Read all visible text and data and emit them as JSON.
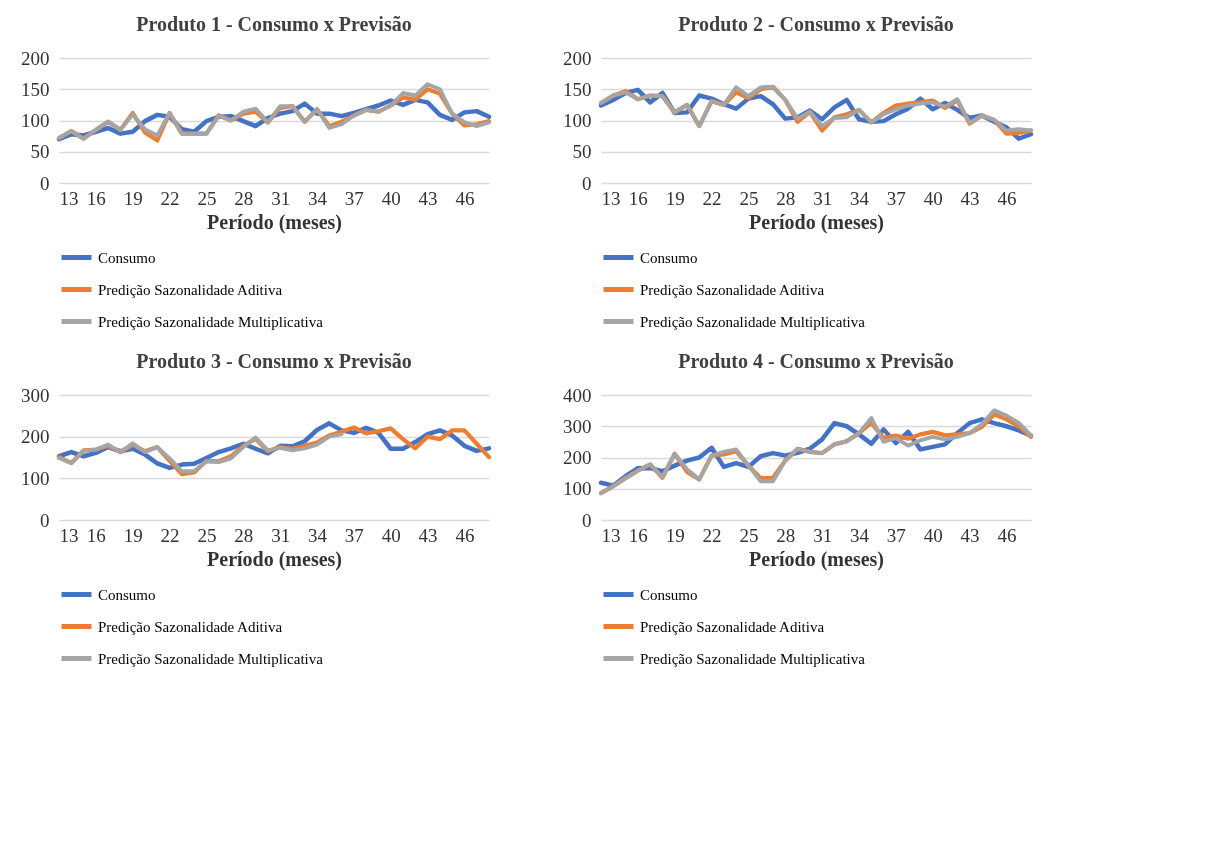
{
  "chart_data": [
    {
      "type": "line",
      "title": "Produto 1 - Consumo x Previsão",
      "xlabel": "Período (meses)",
      "x": [
        13,
        14,
        15,
        16,
        17,
        18,
        19,
        20,
        21,
        22,
        23,
        24,
        25,
        26,
        27,
        28,
        29,
        30,
        31,
        32,
        33,
        34,
        35,
        36,
        37,
        38,
        39,
        40,
        41,
        42,
        43,
        44,
        45,
        46,
        47,
        48
      ],
      "xlim": [
        13,
        48
      ],
      "xticks": [
        13,
        16,
        19,
        22,
        25,
        28,
        31,
        34,
        37,
        40,
        43,
        46
      ],
      "ylim": [
        0,
        200
      ],
      "yticks": [
        0,
        50,
        100,
        150,
        200
      ],
      "grid": "y",
      "legend": "bottom",
      "series": [
        {
          "name": "Consumo",
          "color": "#4472c4",
          "values": [
            70,
            78,
            76,
            82,
            88,
            79,
            82,
            99,
            109,
            106,
            86,
            82,
            99,
            106,
            107,
            99,
            91,
            104,
            111,
            115,
            127,
            111,
            111,
            107,
            112,
            118,
            124,
            132,
            125,
            133,
            129,
            109,
            101,
            113,
            115,
            106
          ]
        },
        {
          "name": "Predição Sazonalidade Aditiva",
          "color": "#ed7d31",
          "values": [
            72,
            83,
            71,
            85,
            98,
            85,
            112,
            81,
            68,
            112,
            79,
            79,
            79,
            108,
            100,
            111,
            114,
            97,
            120,
            123,
            98,
            118,
            91,
            98,
            108,
            117,
            114,
            124,
            137,
            133,
            150,
            143,
            111,
            92,
            94,
            99
          ]
        },
        {
          "name": "Predição Sazonalidade Multiplicativa",
          "color": "#a5a5a5",
          "values": [
            72,
            83,
            71,
            85,
            98,
            85,
            110,
            86,
            76,
            112,
            79,
            79,
            79,
            108,
            100,
            114,
            119,
            97,
            123,
            123,
            98,
            118,
            88,
            94,
            108,
            117,
            114,
            124,
            144,
            140,
            158,
            150,
            111,
            97,
            91,
            97
          ]
        }
      ]
    },
    {
      "type": "line",
      "title": "Produto 2 - Consumo x Previsão",
      "xlabel": "Período (meses)",
      "x": [
        13,
        14,
        15,
        16,
        17,
        18,
        19,
        20,
        21,
        22,
        23,
        24,
        25,
        26,
        27,
        28,
        29,
        30,
        31,
        32,
        33,
        34,
        35,
        36,
        37,
        38,
        39,
        40,
        41,
        42,
        43,
        44,
        45,
        46,
        47,
        48
      ],
      "xlim": [
        13,
        48
      ],
      "xticks": [
        13,
        16,
        19,
        22,
        25,
        28,
        31,
        34,
        37,
        40,
        43,
        46
      ],
      "ylim": [
        0,
        200
      ],
      "yticks": [
        0,
        50,
        100,
        150,
        200
      ],
      "grid": "y",
      "legend": "bottom",
      "series": [
        {
          "name": "Consumo",
          "color": "#4472c4",
          "values": [
            124,
            133,
            144,
            149,
            129,
            144,
            112,
            113,
            140,
            135,
            126,
            119,
            135,
            139,
            126,
            103,
            105,
            116,
            102,
            121,
            133,
            102,
            98,
            99,
            110,
            119,
            135,
            118,
            128,
            117,
            104,
            108,
            98,
            89,
            71,
            78
          ]
        },
        {
          "name": "Predição Sazonalidade Aditiva",
          "color": "#ed7d31",
          "values": [
            128,
            140,
            147,
            134,
            140,
            139,
            113,
            125,
            91,
            131,
            125,
            145,
            136,
            150,
            154,
            133,
            98,
            114,
            84,
            105,
            110,
            117,
            97,
            112,
            124,
            127,
            129,
            132,
            120,
            132,
            95,
            108,
            101,
            79,
            80,
            84
          ]
        },
        {
          "name": "Predição Sazonalidade Multiplicativa",
          "color": "#a5a5a5",
          "values": [
            128,
            140,
            145,
            134,
            140,
            139,
            113,
            125,
            91,
            131,
            125,
            153,
            139,
            153,
            154,
            133,
            103,
            114,
            91,
            104,
            105,
            117,
            97,
            110,
            118,
            124,
            127,
            129,
            122,
            134,
            96,
            108,
            101,
            84,
            86,
            84
          ]
        }
      ]
    },
    {
      "type": "line",
      "title": "Produto 3 - Consumo x Previsão",
      "xlabel": "Período (meses)",
      "x": [
        13,
        14,
        15,
        16,
        17,
        18,
        19,
        20,
        21,
        22,
        23,
        24,
        25,
        26,
        27,
        28,
        29,
        30,
        31,
        32,
        33,
        34,
        35,
        36,
        37,
        38,
        39,
        40,
        41,
        42,
        43,
        44,
        45,
        46,
        47,
        48
      ],
      "xlim": [
        13,
        48
      ],
      "xticks": [
        13,
        16,
        19,
        22,
        25,
        28,
        31,
        34,
        37,
        40,
        43,
        46
      ],
      "ylim": [
        0,
        300
      ],
      "yticks": [
        0,
        100,
        200,
        300
      ],
      "grid": "y",
      "legend": "bottom",
      "series": [
        {
          "name": "Consumo",
          "color": "#4472c4",
          "values": [
            153,
            163,
            153,
            161,
            175,
            165,
            171,
            157,
            136,
            125,
            133,
            135,
            149,
            163,
            172,
            183,
            171,
            160,
            178,
            177,
            189,
            216,
            232,
            215,
            209,
            221,
            209,
            171,
            171,
            187,
            206,
            215,
            203,
            178,
            166,
            172
          ]
        },
        {
          "name": "Predição Sazonalidade Aditiva",
          "color": "#ed7d31",
          "values": [
            151,
            137,
            167,
            169,
            178,
            163,
            181,
            165,
            175,
            142,
            110,
            114,
            142,
            141,
            153,
            178,
            195,
            165,
            175,
            171,
            178,
            186,
            203,
            212,
            222,
            208,
            213,
            220,
            194,
            172,
            200,
            194,
            215,
            215,
            183,
            151
          ]
        },
        {
          "name": "Predição Sazonalidade Multiplicativa",
          "color": "#a5a5a5",
          "values": [
            149,
            136,
            166,
            169,
            181,
            163,
            184,
            163,
            175,
            148,
            117,
            117,
            141,
            139,
            148,
            175,
            198,
            167,
            173,
            167,
            172,
            181,
            200,
            206,
            null,
            null,
            null,
            null,
            null,
            null,
            null,
            null,
            null,
            null,
            null,
            null
          ]
        }
      ]
    },
    {
      "type": "line",
      "title": "Produto 4 - Consumo x Previsão",
      "xlabel": "Período (meses)",
      "x": [
        13,
        14,
        15,
        16,
        17,
        18,
        19,
        20,
        21,
        22,
        23,
        24,
        25,
        26,
        27,
        28,
        29,
        30,
        31,
        32,
        33,
        34,
        35,
        36,
        37,
        38,
        39,
        40,
        41,
        42,
        43,
        44,
        45,
        46,
        47,
        48
      ],
      "xlim": [
        13,
        48
      ],
      "xticks": [
        13,
        16,
        19,
        22,
        25,
        28,
        31,
        34,
        37,
        40,
        43,
        46
      ],
      "ylim": [
        0,
        400
      ],
      "yticks": [
        0,
        100,
        200,
        300,
        400
      ],
      "grid": "y",
      "legend": "bottom",
      "series": [
        {
          "name": "Consumo",
          "color": "#4472c4",
          "values": [
            119,
            110,
            140,
            166,
            166,
            156,
            174,
            190,
            200,
            231,
            170,
            182,
            170,
            204,
            214,
            206,
            215,
            228,
            258,
            310,
            300,
            274,
            244,
            290,
            246,
            282,
            226,
            234,
            242,
            278,
            310,
            322,
            310,
            300,
            287,
            270
          ]
        },
        {
          "name": "Predição Sazonalidade Aditiva",
          "color": "#ed7d31",
          "values": [
            86,
            108,
            134,
            158,
            178,
            135,
            212,
            154,
            130,
            206,
            210,
            220,
            174,
            134,
            135,
            190,
            228,
            218,
            214,
            242,
            252,
            278,
            311,
            263,
            270,
            260,
            274,
            282,
            271,
            274,
            278,
            298,
            338,
            322,
            300,
            266
          ]
        },
        {
          "name": "Predição Sazonalidade Multiplicativa",
          "color": "#a5a5a5",
          "values": [
            86,
            108,
            134,
            158,
            178,
            138,
            212,
            162,
            130,
            206,
            218,
            226,
            174,
            124,
            124,
            190,
            228,
            218,
            214,
            242,
            252,
            278,
            326,
            250,
            262,
            238,
            255,
            266,
            258,
            266,
            278,
            306,
            351,
            334,
            311,
            271
          ]
        }
      ]
    }
  ]
}
